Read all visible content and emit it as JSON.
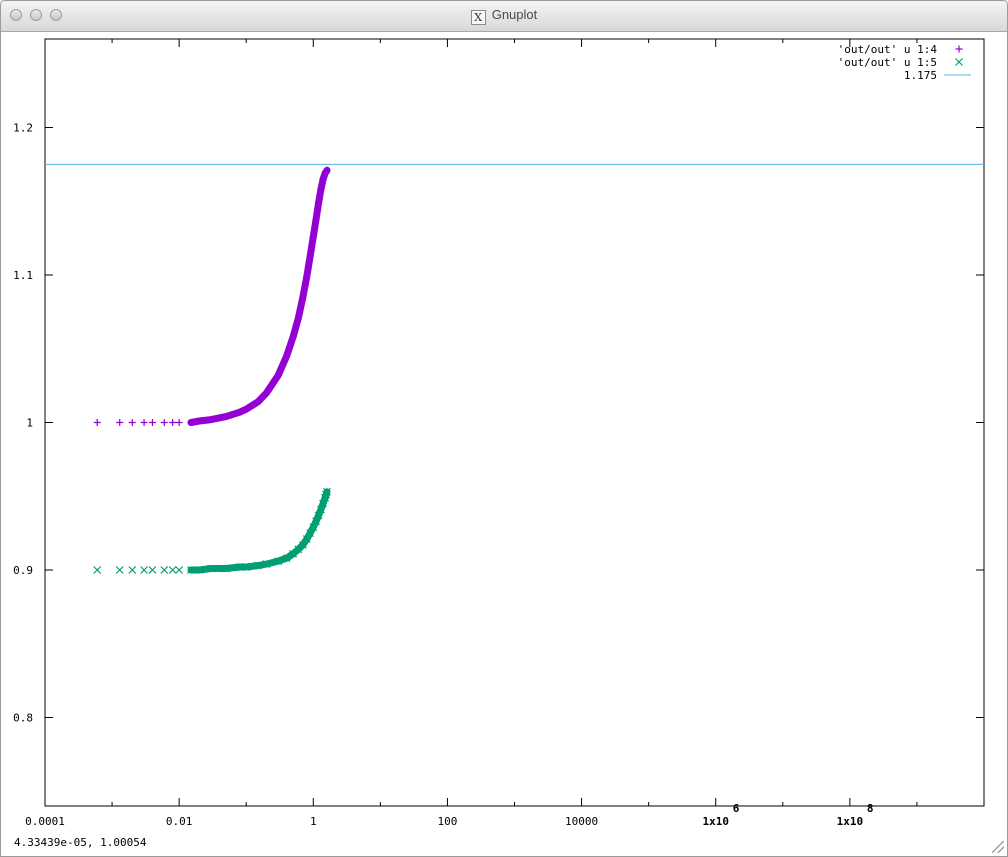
{
  "window": {
    "title": "Gnuplot",
    "app_icon": "x11-icon"
  },
  "status_bar": {
    "mouse_readout": "4.33439e-05,  1.00054"
  },
  "chart_data": {
    "type": "scatter",
    "title": "",
    "xlabel": "",
    "ylabel": "",
    "x_scale": "log",
    "xlim": [
      0.0001,
      10000000000
    ],
    "ylim": [
      0.74,
      1.26
    ],
    "grid": false,
    "legend_position": "top-right",
    "x_tick_labels": [
      "0.0001",
      "0.01",
      "1",
      "100",
      "10000",
      "1x10",
      "1x10"
    ],
    "x_tick_exponents": [
      "",
      "",
      "",
      "",
      "",
      "6",
      "8"
    ],
    "x_ticks": [
      0.0001,
      0.01,
      1,
      100,
      10000,
      1000000,
      100000000
    ],
    "y_tick_labels": [
      "0.8",
      "0.9",
      "1",
      "1.1",
      "1.2"
    ],
    "y_ticks": [
      0.8,
      0.9,
      1.0,
      1.1,
      1.2
    ],
    "series": [
      {
        "name": "'out/out' u 1:4",
        "marker": "+",
        "color": "#9400d3",
        "x": [
          0.0006,
          0.0013,
          0.002,
          0.003,
          0.004,
          0.006,
          0.008,
          0.01,
          0.015,
          0.02,
          0.03,
          0.05,
          0.08,
          0.1,
          0.15,
          0.2,
          0.3,
          0.4,
          0.5,
          0.6,
          0.7,
          0.8,
          0.9,
          1.0,
          1.1,
          1.2,
          1.3,
          1.4,
          1.5,
          1.55,
          1.6
        ],
        "y": [
          1.0,
          1.0,
          1.0,
          1.0,
          1.0,
          1.0,
          1.0,
          1.0,
          1.0,
          1.001,
          1.002,
          1.004,
          1.007,
          1.009,
          1.014,
          1.02,
          1.032,
          1.045,
          1.058,
          1.071,
          1.085,
          1.099,
          1.113,
          1.126,
          1.138,
          1.149,
          1.158,
          1.165,
          1.169,
          1.17,
          1.171
        ]
      },
      {
        "name": "'out/out' u  1:5",
        "marker": "x",
        "color": "#009e73",
        "x": [
          0.0006,
          0.0013,
          0.002,
          0.003,
          0.004,
          0.006,
          0.008,
          0.01,
          0.015,
          0.02,
          0.03,
          0.05,
          0.08,
          0.1,
          0.15,
          0.2,
          0.3,
          0.4,
          0.5,
          0.6,
          0.7,
          0.8,
          0.9,
          1.0,
          1.1,
          1.2,
          1.3,
          1.4,
          1.5,
          1.55,
          1.6
        ],
        "y": [
          0.9,
          0.9,
          0.9,
          0.9,
          0.9,
          0.9,
          0.9,
          0.9,
          0.9,
          0.9,
          0.901,
          0.901,
          0.902,
          0.902,
          0.903,
          0.904,
          0.906,
          0.908,
          0.911,
          0.914,
          0.917,
          0.921,
          0.925,
          0.929,
          0.933,
          0.937,
          0.941,
          0.945,
          0.949,
          0.951,
          0.953
        ]
      },
      {
        "name": "1.175",
        "marker": "line",
        "color": "#56b4e9",
        "constant": 1.175
      }
    ]
  }
}
